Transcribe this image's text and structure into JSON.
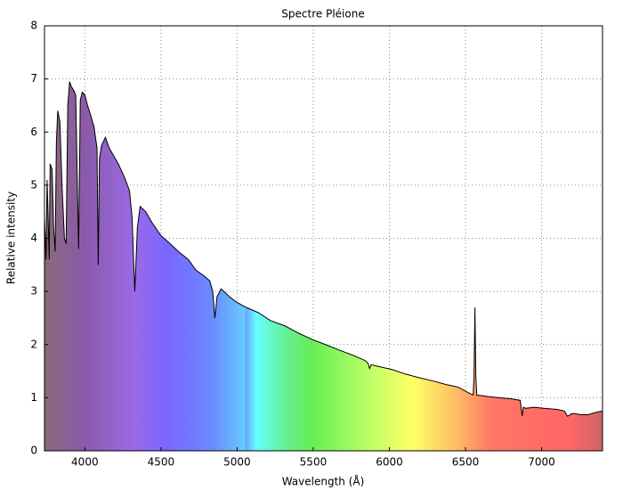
{
  "chart_data": {
    "type": "line",
    "title": "Spectre Pléione",
    "x_label": "Wavelength (Å)",
    "y_label": "Relative intensity",
    "x": [
      3735,
      3745,
      3752,
      3760,
      3766,
      3772,
      3785,
      3795,
      3805,
      3813,
      3822,
      3836,
      3850,
      3866,
      3877,
      3888,
      3900,
      3912,
      3924,
      3940,
      3959,
      3970,
      3983,
      4000,
      4018,
      4040,
      4060,
      4080,
      4088,
      4096,
      4110,
      4135,
      4160,
      4190,
      4220,
      4260,
      4293,
      4310,
      4328,
      4345,
      4363,
      4400,
      4440,
      4500,
      4560,
      4615,
      4680,
      4730,
      4780,
      4820,
      4840,
      4854,
      4868,
      4895,
      4950,
      4995,
      5060,
      5140,
      5220,
      5316,
      5400,
      5490,
      5580,
      5667,
      5760,
      5840,
      5860,
      5870,
      5880,
      5940,
      6017,
      6100,
      6190,
      6280,
      6370,
      6450,
      6515,
      6550,
      6556,
      6562,
      6568,
      6574,
      6650,
      6720,
      6800,
      6860,
      6866,
      6872,
      6880,
      6895,
      6950,
      7012,
      7100,
      7150,
      7170,
      7200,
      7217,
      7260,
      7305,
      7350,
      7400
    ],
    "series": [
      {
        "color": "#000000",
        "values": [
          4.4,
          3.6,
          5.1,
          4.3,
          3.6,
          5.4,
          5.3,
          4.2,
          3.75,
          5.8,
          6.4,
          6.2,
          5.0,
          4.0,
          3.9,
          6.5,
          6.95,
          6.85,
          6.8,
          6.7,
          3.8,
          6.6,
          6.75,
          6.7,
          6.5,
          6.3,
          6.1,
          5.7,
          3.5,
          5.5,
          5.75,
          5.9,
          5.7,
          5.55,
          5.4,
          5.15,
          4.9,
          4.4,
          3.0,
          4.2,
          4.6,
          4.5,
          4.3,
          4.05,
          3.9,
          3.75,
          3.6,
          3.4,
          3.3,
          3.2,
          3.0,
          2.5,
          2.9,
          3.05,
          2.9,
          2.8,
          2.7,
          2.6,
          2.45,
          2.35,
          2.22,
          2.1,
          2.0,
          1.9,
          1.8,
          1.7,
          1.65,
          1.55,
          1.62,
          1.58,
          1.53,
          1.45,
          1.38,
          1.32,
          1.25,
          1.2,
          1.1,
          1.05,
          1.4,
          2.7,
          1.4,
          1.05,
          1.02,
          1.0,
          0.98,
          0.95,
          0.8,
          0.65,
          0.82,
          0.8,
          0.82,
          0.8,
          0.78,
          0.75,
          0.65,
          0.7,
          0.7,
          0.68,
          0.68,
          0.72,
          0.75
        ]
      }
    ],
    "xlim": [
      3735,
      7400
    ],
    "ylim": [
      0,
      8
    ],
    "xticks": [
      4000,
      4500,
      5000,
      5500,
      6000,
      6500,
      7000
    ],
    "yticks": [
      0,
      1,
      2,
      3,
      4,
      5,
      6,
      7,
      8
    ],
    "grid": true
  }
}
